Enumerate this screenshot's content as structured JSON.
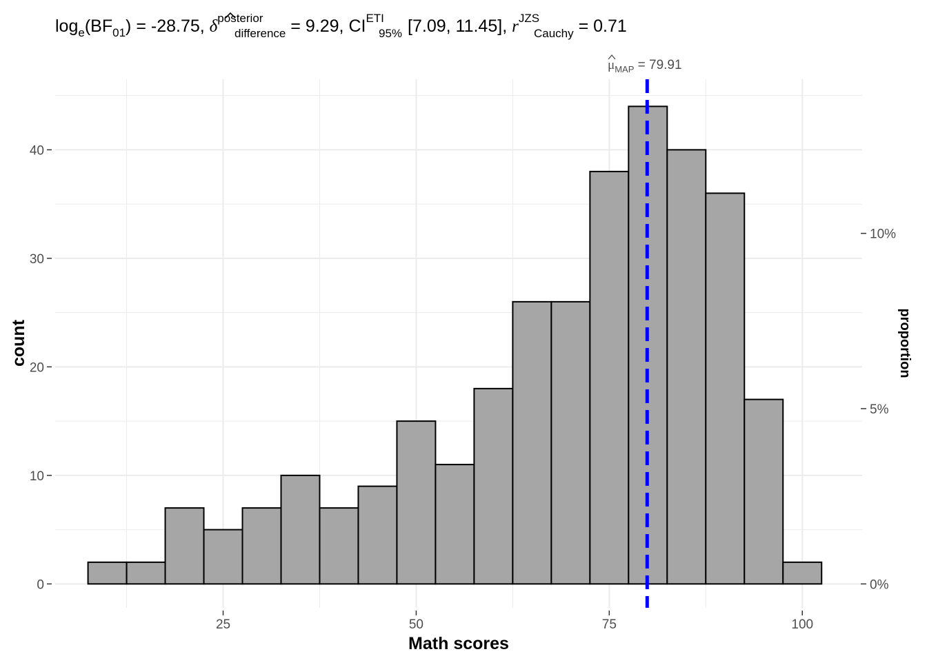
{
  "chart_data": {
    "type": "histogram",
    "title": {
      "bf": {
        "prefix": "log",
        "sub": "e",
        "arg": "BF",
        "arg_sub": "01",
        "value": "-28.75"
      },
      "delta": {
        "sup": "posterior",
        "sub": "difference",
        "value": "9.29"
      },
      "ci": {
        "prefix": "CI",
        "sup": "ETI",
        "sub": "95%",
        "value": "[7.09, 11.45]"
      },
      "r": {
        "sup": "JZS",
        "sub": "Cauchy",
        "value": "0.71"
      }
    },
    "xlabel": "Math scores",
    "ylabel": "count",
    "y2label": "proportion",
    "xlim": [
      3.25,
      107.75
    ],
    "ylim": [
      -2.2,
      46.5
    ],
    "x_ticks": [
      25,
      50,
      75,
      100
    ],
    "y_ticks": [
      0,
      10,
      20,
      30,
      40
    ],
    "y_minor_ticks": [
      5,
      15,
      25,
      35,
      45
    ],
    "x_minor_ticks": [
      12.5,
      37.5,
      62.5,
      87.5
    ],
    "y2_ticks": [
      {
        "count": 0,
        "label": "0%"
      },
      {
        "count": 16.15,
        "label": "5%"
      },
      {
        "count": 32.3,
        "label": "10%"
      }
    ],
    "bin_width": 5,
    "bins": [
      {
        "x0": 7.5,
        "x1": 12.5,
        "count": 2
      },
      {
        "x0": 12.5,
        "x1": 17.5,
        "count": 2
      },
      {
        "x0": 17.5,
        "x1": 22.5,
        "count": 7
      },
      {
        "x0": 22.5,
        "x1": 27.5,
        "count": 5
      },
      {
        "x0": 27.5,
        "x1": 32.5,
        "count": 7
      },
      {
        "x0": 32.5,
        "x1": 37.5,
        "count": 10
      },
      {
        "x0": 37.5,
        "x1": 42.5,
        "count": 7
      },
      {
        "x0": 42.5,
        "x1": 47.5,
        "count": 9
      },
      {
        "x0": 47.5,
        "x1": 52.5,
        "count": 15
      },
      {
        "x0": 52.5,
        "x1": 57.5,
        "count": 11
      },
      {
        "x0": 57.5,
        "x1": 62.5,
        "count": 18
      },
      {
        "x0": 62.5,
        "x1": 67.5,
        "count": 26
      },
      {
        "x0": 67.5,
        "x1": 72.5,
        "count": 26
      },
      {
        "x0": 72.5,
        "x1": 77.5,
        "count": 38
      },
      {
        "x0": 77.5,
        "x1": 82.5,
        "count": 44
      },
      {
        "x0": 82.5,
        "x1": 87.5,
        "count": 40
      },
      {
        "x0": 87.5,
        "x1": 92.5,
        "count": 36
      },
      {
        "x0": 92.5,
        "x1": 97.5,
        "count": 17
      },
      {
        "x0": 97.5,
        "x1": 102.5,
        "count": 2
      }
    ],
    "vline": {
      "x": 79.91,
      "label_symbol": "μ",
      "label_sub": "MAP",
      "label_value": "79.91",
      "color": "#0000ff",
      "style": "dashed"
    },
    "colors": {
      "bar_fill": "#a6a6a6",
      "bar_stroke": "#000000",
      "grid": "#ebebeb",
      "background": "#ffffff"
    },
    "grid": true,
    "legend": "none"
  }
}
